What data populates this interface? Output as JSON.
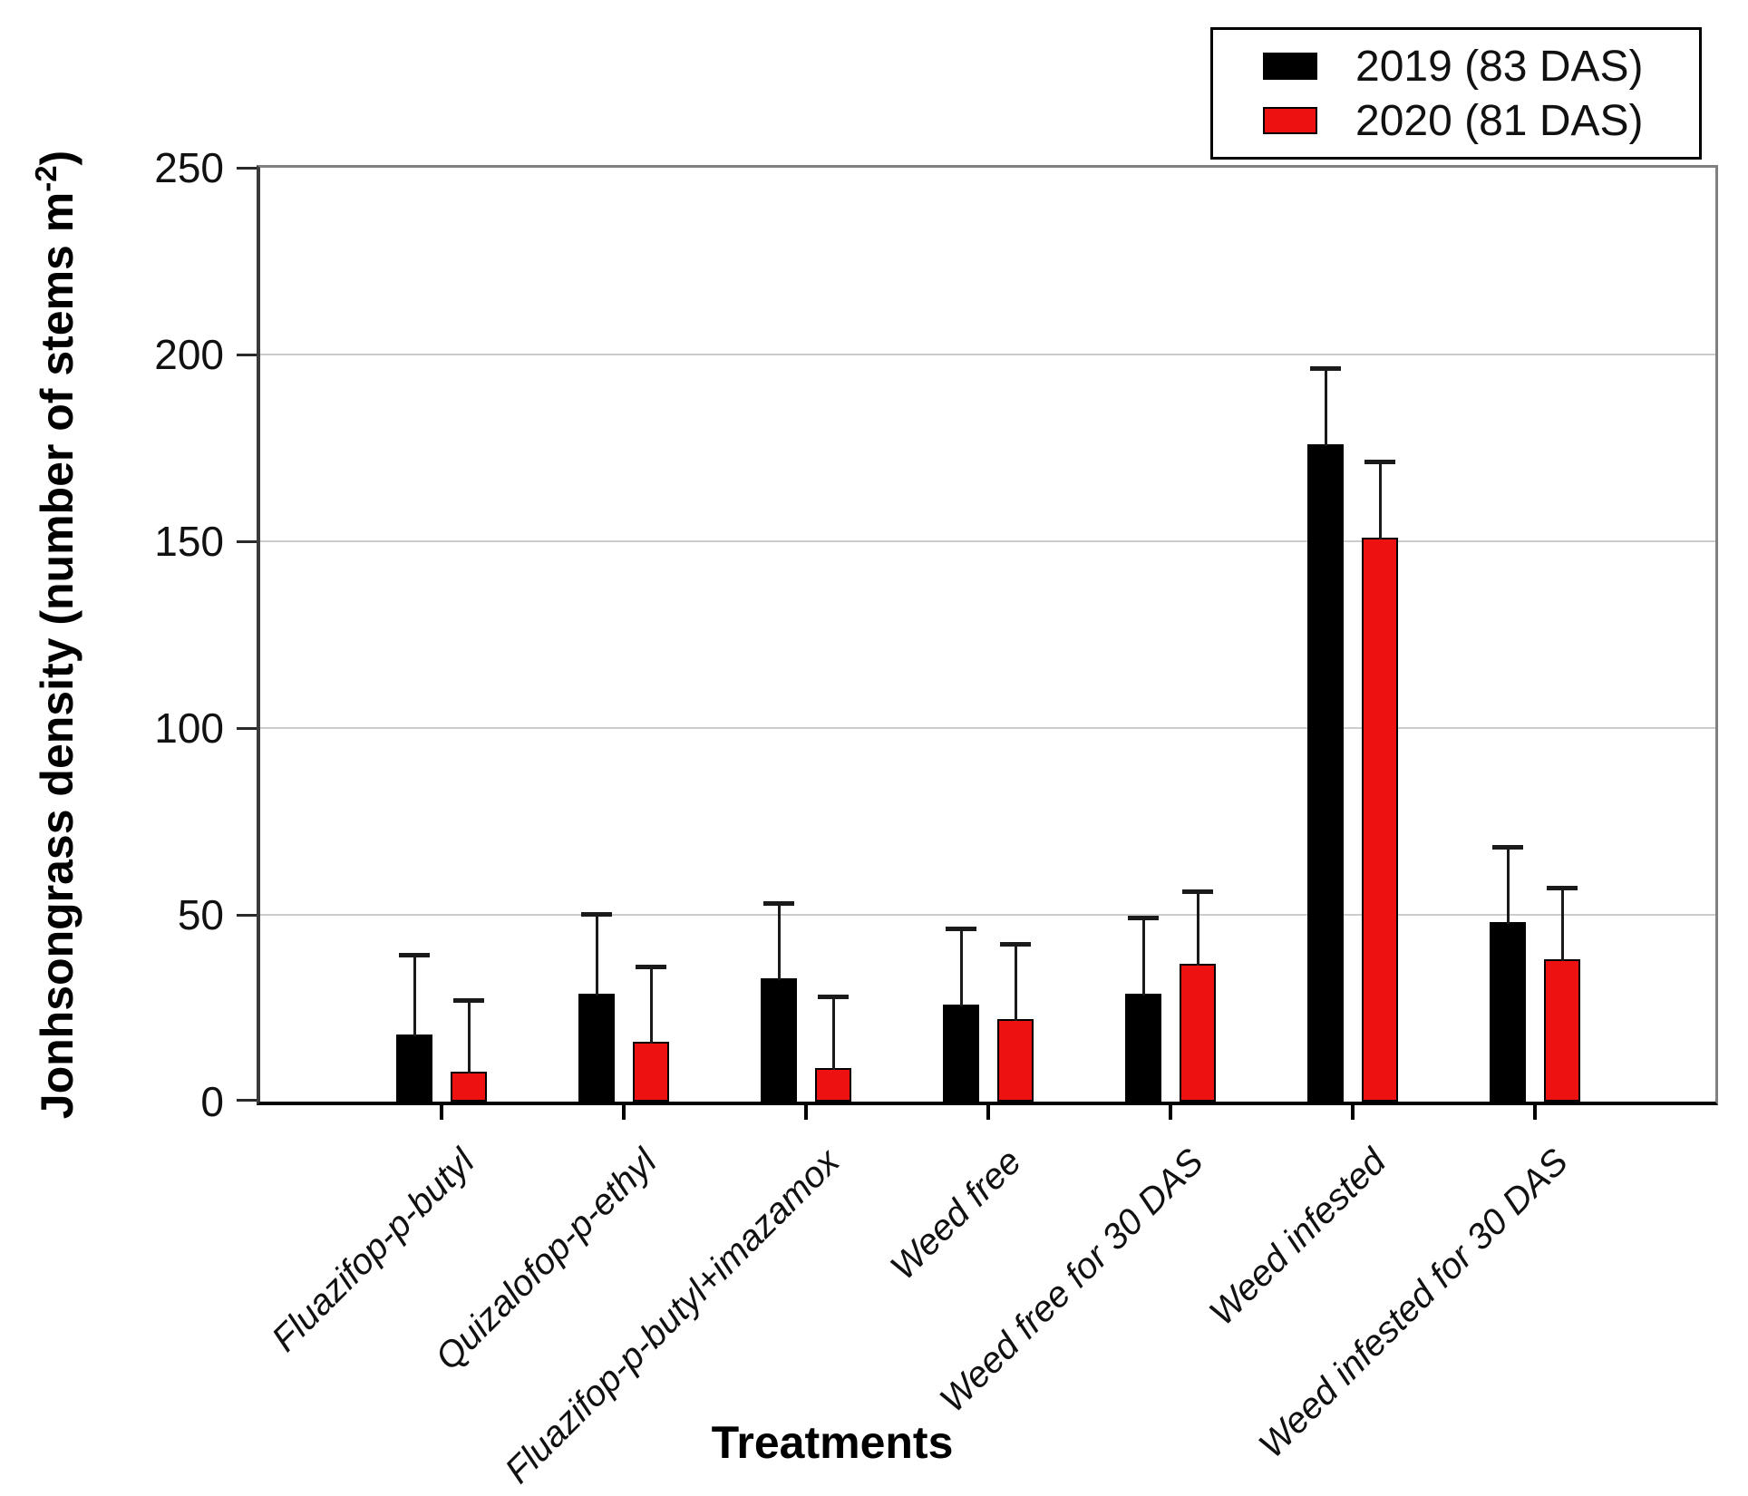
{
  "chart_data": {
    "type": "bar",
    "title": "",
    "xlabel": "Treatments",
    "ylabel": "Jonhsongrass density (number of stems m-2)",
    "ylabel_parts": {
      "main": "Jonhsongrass density (number of stems m",
      "superscript": "-2",
      "close": ")"
    },
    "ylim": [
      0,
      250
    ],
    "yticks": [
      0,
      50,
      100,
      150,
      200,
      250
    ],
    "grid": "horizontal light-gray lines every 50 units",
    "legend_position": "top-right",
    "categories": [
      "Fluazifop-p-butyl",
      "Quizalofop-p-ethyl",
      "Fluazifop-p-butyl+imazamox",
      "Weed free",
      "Weed free for 30 DAS",
      "Weed infested",
      "Weed infested for 30 DAS"
    ],
    "series": [
      {
        "name": "2019 (83 DAS)",
        "color": "#000000",
        "values": [
          18,
          29,
          33,
          26,
          29,
          176,
          48
        ],
        "error_upper": [
          21,
          21,
          20,
          20,
          20,
          20,
          20
        ]
      },
      {
        "name": "2020 (81 DAS)",
        "color": "#ee1111",
        "values": [
          8,
          16,
          9,
          22,
          37,
          151,
          38
        ],
        "error_upper": [
          19,
          20,
          19,
          20,
          19,
          20,
          19
        ]
      }
    ],
    "colors": {
      "gridline": "#cccccc",
      "frame_gray": "#808080",
      "axis": "#000000",
      "error_bar": "#1a1a1a"
    }
  }
}
